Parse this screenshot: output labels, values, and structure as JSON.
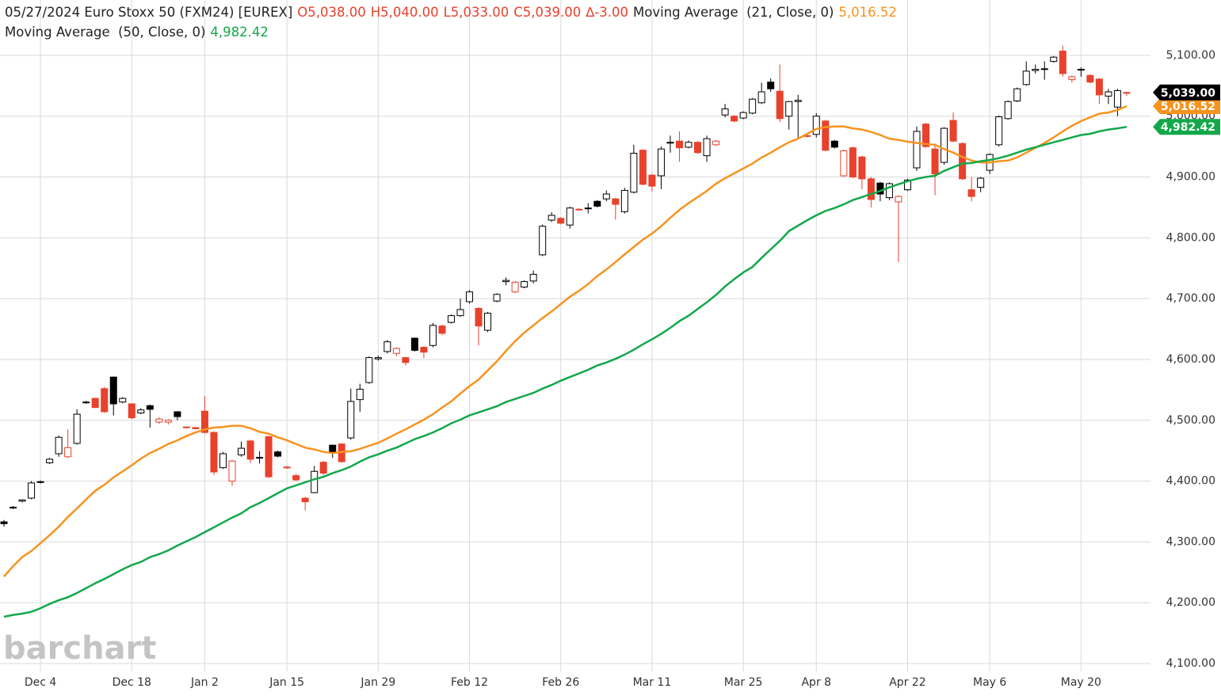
{
  "chart_data": {
    "type": "candlestick",
    "title": "05/27/2024 Euro Stoxx 50 (FXM24) [EUREX]",
    "ohlc_labels": [
      "O5,038.00",
      "H5,040.00",
      "L5,033.00",
      "C5,039.00",
      "∆-3.00"
    ],
    "close_label": "5,039.00",
    "watermark": "barchart",
    "up_color": "#000000",
    "down_color": "#e8412c",
    "grid": true,
    "categories": [
      null,
      null,
      null,
      null,
      "Dec 4",
      null,
      null,
      null,
      null,
      null,
      null,
      null,
      null,
      null,
      "Dec 18",
      null,
      null,
      null,
      null,
      null,
      null,
      null,
      "Jan 2",
      null,
      null,
      null,
      null,
      null,
      null,
      null,
      null,
      "Jan 15",
      null,
      null,
      null,
      null,
      null,
      null,
      null,
      null,
      null,
      "Jan 29",
      null,
      null,
      null,
      null,
      null,
      null,
      null,
      null,
      null,
      "Feb 12",
      null,
      null,
      null,
      null,
      null,
      null,
      null,
      null,
      null,
      "Feb 26",
      null,
      null,
      null,
      null,
      null,
      null,
      null,
      null,
      null,
      "Mar 11",
      null,
      null,
      null,
      null,
      null,
      null,
      null,
      null,
      null,
      "Mar 25",
      null,
      null,
      null,
      null,
      null,
      null,
      null,
      "Apr 8",
      null,
      null,
      null,
      null,
      null,
      null,
      null,
      null,
      null,
      "Apr 22",
      null,
      null,
      null,
      null,
      null,
      null,
      null,
      null,
      "May 6",
      null,
      null,
      null,
      null,
      null,
      null,
      null,
      null,
      null,
      "May 20",
      null,
      null,
      null,
      null,
      null
    ],
    "open": [
      4333,
      4356,
      4367,
      4372,
      4398,
      4430,
      4445,
      4440,
      4462,
      4529,
      4536,
      4552,
      4571,
      4530,
      4527,
      4512,
      4524,
      4497,
      4497,
      4514,
      4489,
      4488,
      4515,
      4480,
      4422,
      4400,
      4443,
      4466,
      4438,
      4473,
      4448,
      4423,
      4409,
      4372,
      4381,
      4431,
      4459,
      4461,
      4471,
      4534,
      4562,
      4601,
      4613,
      4610,
      4603,
      4635,
      4620,
      4623,
      4655,
      4661,
      4672,
      4695,
      4684,
      4648,
      4696,
      4728,
      4711,
      4719,
      4729,
      4772,
      4829,
      4832,
      4821,
      4847,
      4848,
      4860,
      4864,
      4864,
      4843,
      4875,
      4944,
      4903,
      4902,
      4956,
      4959,
      4949,
      4957,
      4935,
      4953,
      5002,
      5000,
      4997,
      5005,
      5022,
      5056,
      5041,
      5000,
      5024,
      4968,
      4970,
      4992,
      4959,
      4902,
      4948,
      4933,
      4897,
      4890,
      4866,
      4859,
      4879,
      4915,
      4987,
      4946,
      4924,
      4993,
      4955,
      4879,
      4883,
      4911,
      4953,
      4996,
      5025,
      5052,
      5075,
      5077,
      5090,
      5107,
      5060,
      5076,
      5067,
      5061,
      5033,
      5015,
      5038
    ],
    "high": [
      4336,
      4359,
      4370,
      4400,
      4401,
      4438,
      4475,
      4485,
      4518,
      4532,
      4537,
      4555,
      4572,
      4538,
      4528,
      4520,
      4526,
      4505,
      4502,
      4515,
      4490,
      4489,
      4540,
      4482,
      4448,
      4435,
      4465,
      4468,
      4449,
      4475,
      4450,
      4425,
      4412,
      4374,
      4425,
      4433,
      4460,
      4462,
      4552,
      4560,
      4605,
      4606,
      4632,
      4620,
      4604,
      4636,
      4622,
      4660,
      4657,
      4674,
      4700,
      4714,
      4686,
      4678,
      4709,
      4735,
      4729,
      4730,
      4746,
      4822,
      4842,
      4834,
      4851,
      4849,
      4857,
      4862,
      4878,
      4866,
      4882,
      4953,
      4946,
      4905,
      4950,
      4968,
      4975,
      4960,
      4959,
      4968,
      4961,
      5020,
      5002,
      5008,
      5030,
      5055,
      5062,
      5085,
      5025,
      5035,
      4970,
      5005,
      4994,
      4961,
      4945,
      4950,
      4935,
      4900,
      4892,
      4891,
      4870,
      4897,
      4983,
      4989,
      4955,
      4982,
      5006,
      4957,
      4900,
      4900,
      4939,
      5001,
      5026,
      5047,
      5090,
      5085,
      5090,
      5099,
      5116,
      5067,
      5080,
      5069,
      5063,
      5045,
      5045,
      5040
    ],
    "low": [
      4325,
      4354,
      4365,
      4370,
      4396,
      4428,
      4440,
      4438,
      4460,
      4527,
      4520,
      4512,
      4508,
      4528,
      4502,
      4510,
      4488,
      4494,
      4493,
      4500,
      4487,
      4485,
      4478,
      4410,
      4420,
      4392,
      4440,
      4430,
      4429,
      4405,
      4439,
      4420,
      4400,
      4352,
      4380,
      4410,
      4438,
      4430,
      4468,
      4514,
      4560,
      4598,
      4610,
      4605,
      4590,
      4613,
      4602,
      4620,
      4640,
      4659,
      4670,
      4692,
      4623,
      4645,
      4694,
      4722,
      4709,
      4717,
      4725,
      4770,
      4826,
      4822,
      4815,
      4845,
      4840,
      4850,
      4860,
      4830,
      4840,
      4873,
      4886,
      4876,
      4880,
      4940,
      4925,
      4947,
      4938,
      4925,
      4951,
      4998,
      4990,
      4995,
      5003,
      5020,
      5040,
      4990,
      4978,
      4965,
      4965,
      4965,
      4942,
      4947,
      4900,
      4898,
      4880,
      4850,
      4860,
      4862,
      4760,
      4877,
      4910,
      4948,
      4870,
      4920,
      4957,
      4895,
      4860,
      4875,
      4905,
      4950,
      4994,
      5023,
      5050,
      5070,
      5060,
      5088,
      5065,
      5055,
      5065,
      5054,
      5020,
      5020,
      5000,
      5033
    ],
    "close": [
      4330,
      4357,
      4369,
      4397,
      4399,
      4436,
      4472,
      4455,
      4510,
      4530,
      4521,
      4514,
      4527,
      4536,
      4504,
      4517,
      4518,
      4502,
      4500,
      4506,
      4488,
      4486,
      4480,
      4415,
      4445,
      4433,
      4454,
      4436,
      4439,
      4407,
      4441,
      4422,
      4402,
      4366,
      4416,
      4413,
      4448,
      4432,
      4531,
      4551,
      4603,
      4603,
      4629,
      4618,
      4595,
      4615,
      4612,
      4656,
      4643,
      4672,
      4682,
      4711,
      4655,
      4676,
      4707,
      4730,
      4727,
      4728,
      4740,
      4819,
      4837,
      4824,
      4849,
      4846,
      4849,
      4852,
      4872,
      4855,
      4878,
      4939,
      4888,
      4885,
      4946,
      4957,
      4948,
      4957,
      4940,
      4963,
      4959,
      5012,
      4992,
      5006,
      5028,
      5040,
      5045,
      4996,
      5024,
      5026,
      4967,
      5000,
      4944,
      4949,
      4943,
      4900,
      4897,
      4863,
      4872,
      4889,
      4868,
      4895,
      4975,
      4950,
      4905,
      4980,
      4959,
      4897,
      4868,
      4898,
      4937,
      4999,
      5024,
      5045,
      5074,
      5077,
      5078,
      5097,
      5070,
      5065,
      5077,
      5056,
      5035,
      5040,
      5042,
      5039
    ],
    "series": [
      {
        "name": "Moving Average  (21, Close, 0)",
        "color": "#f7931e",
        "value_label": "5,016.52",
        "values": [
          4243,
          4260,
          4275,
          4285,
          4298,
          4311,
          4325,
          4341,
          4355,
          4370,
          4384,
          4394,
          4406,
          4416,
          4426,
          4437,
          4446,
          4453,
          4461,
          4467,
          4474,
          4480,
          4485,
          4488,
          4489,
          4491,
          4491,
          4487,
          4481,
          4478,
          4472,
          4467,
          4461,
          4455,
          4452,
          4448,
          4446,
          4448,
          4449,
          4453,
          4458,
          4463,
          4470,
          4478,
          4485,
          4493,
          4501,
          4510,
          4521,
          4531,
          4544,
          4556,
          4567,
          4582,
          4597,
          4614,
          4630,
          4644,
          4656,
          4668,
          4679,
          4691,
          4703,
          4713,
          4724,
          4737,
          4748,
          4760,
          4773,
          4785,
          4797,
          4807,
          4819,
          4833,
          4846,
          4857,
          4867,
          4877,
          4889,
          4898,
          4906,
          4914,
          4922,
          4932,
          4940,
          4949,
          4957,
          4963,
          4971,
          4979,
          4982,
          4983,
          4983,
          4980,
          4978,
          4974,
          4969,
          4963,
          4961,
          4958,
          4956,
          4954,
          4953,
          4946,
          4940,
          4933,
          4927,
          4924,
          4924,
          4926,
          4927,
          4932,
          4940,
          4948,
          4956,
          4965,
          4975,
          4984,
          4992,
          4998,
          5004,
          5006,
          5010,
          5016.52
        ]
      },
      {
        "name": "Moving Average  (50, Close, 0)",
        "color": "#12a84a",
        "value_label": "4,982.42",
        "values": [
          4177,
          4180,
          4182,
          4185,
          4191,
          4198,
          4204,
          4209,
          4216,
          4224,
          4232,
          4239,
          4247,
          4255,
          4262,
          4267,
          4275,
          4280,
          4286,
          4294,
          4301,
          4308,
          4316,
          4324,
          4332,
          4340,
          4347,
          4357,
          4364,
          4372,
          4380,
          4388,
          4393,
          4398,
          4403,
          4407,
          4413,
          4418,
          4424,
          4432,
          4439,
          4444,
          4450,
          4455,
          4462,
          4469,
          4474,
          4480,
          4487,
          4495,
          4501,
          4508,
          4513,
          4518,
          4523,
          4530,
          4535,
          4540,
          4545,
          4552,
          4558,
          4565,
          4571,
          4577,
          4583,
          4590,
          4595,
          4601,
          4608,
          4616,
          4625,
          4633,
          4642,
          4652,
          4663,
          4672,
          4683,
          4694,
          4706,
          4720,
          4732,
          4743,
          4752,
          4767,
          4781,
          4795,
          4811,
          4820,
          4829,
          4837,
          4844,
          4849,
          4855,
          4862,
          4867,
          4872,
          4877,
          4883,
          4888,
          4893,
          4897,
          4900,
          4902,
          4910,
          4916,
          4922,
          4923,
          4926,
          4928,
          4931,
          4935,
          4940,
          4945,
          4949,
          4953,
          4957,
          4961,
          4965,
          4969,
          4971,
          4975,
          4978,
          4980,
          4982.42
        ]
      }
    ],
    "ylim": [
      4087,
      5191
    ],
    "yticks": [
      {
        "value": 4100,
        "label": "4,100.00"
      },
      {
        "value": 4200,
        "label": "4,200.00"
      },
      {
        "value": 4300,
        "label": "4,300.00"
      },
      {
        "value": 4400,
        "label": "4,400.00"
      },
      {
        "value": 4500,
        "label": "4,500.00"
      },
      {
        "value": 4600,
        "label": "4,600.00"
      },
      {
        "value": 4700,
        "label": "4,700.00"
      },
      {
        "value": 4800,
        "label": "4,800.00"
      },
      {
        "value": 4900,
        "label": "4,900.00"
      },
      {
        "value": 5000,
        "label": "5,000.00"
      },
      {
        "value": 5100,
        "label": "5,100.00"
      }
    ]
  }
}
